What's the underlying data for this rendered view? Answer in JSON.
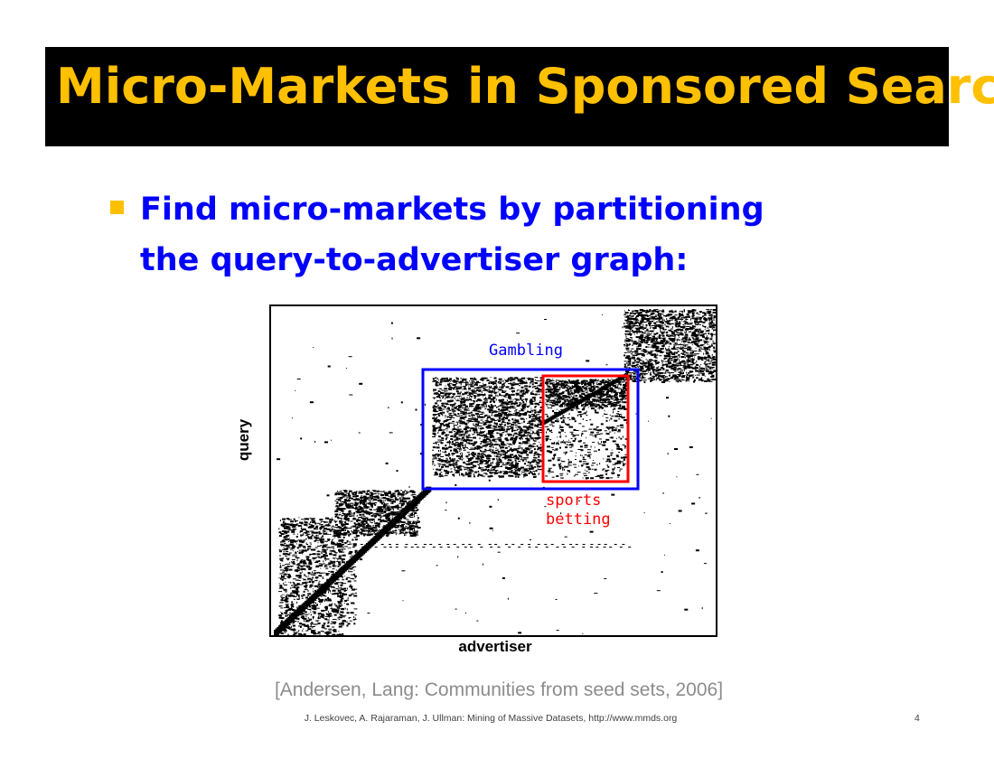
{
  "slide": {
    "title": "Micro-Markets in Sponsored Search",
    "bullet": "Find micro-markets by partitioning the query-to-advertiser graph:",
    "citation": "[Andersen, Lang: Communities from seed sets, 2006]",
    "footer": "J. Leskovec, A. Rajaraman, J. Ullman: Mining of Massive Datasets, http://www.mmds.org",
    "page_number": "4"
  },
  "figure": {
    "ylabel": "query",
    "xlabel": "advertiser",
    "gambling_label": "Gambling",
    "sports_label_1": "sports",
    "sports_label_2": "betting"
  },
  "colors": {
    "title_bar": "#000000",
    "title_text": "#ffc000",
    "bullet_marker": "#ffc000",
    "bullet_text": "#0000ff",
    "gambling_box": "#0000ff",
    "sports_box": "#ff0000"
  }
}
